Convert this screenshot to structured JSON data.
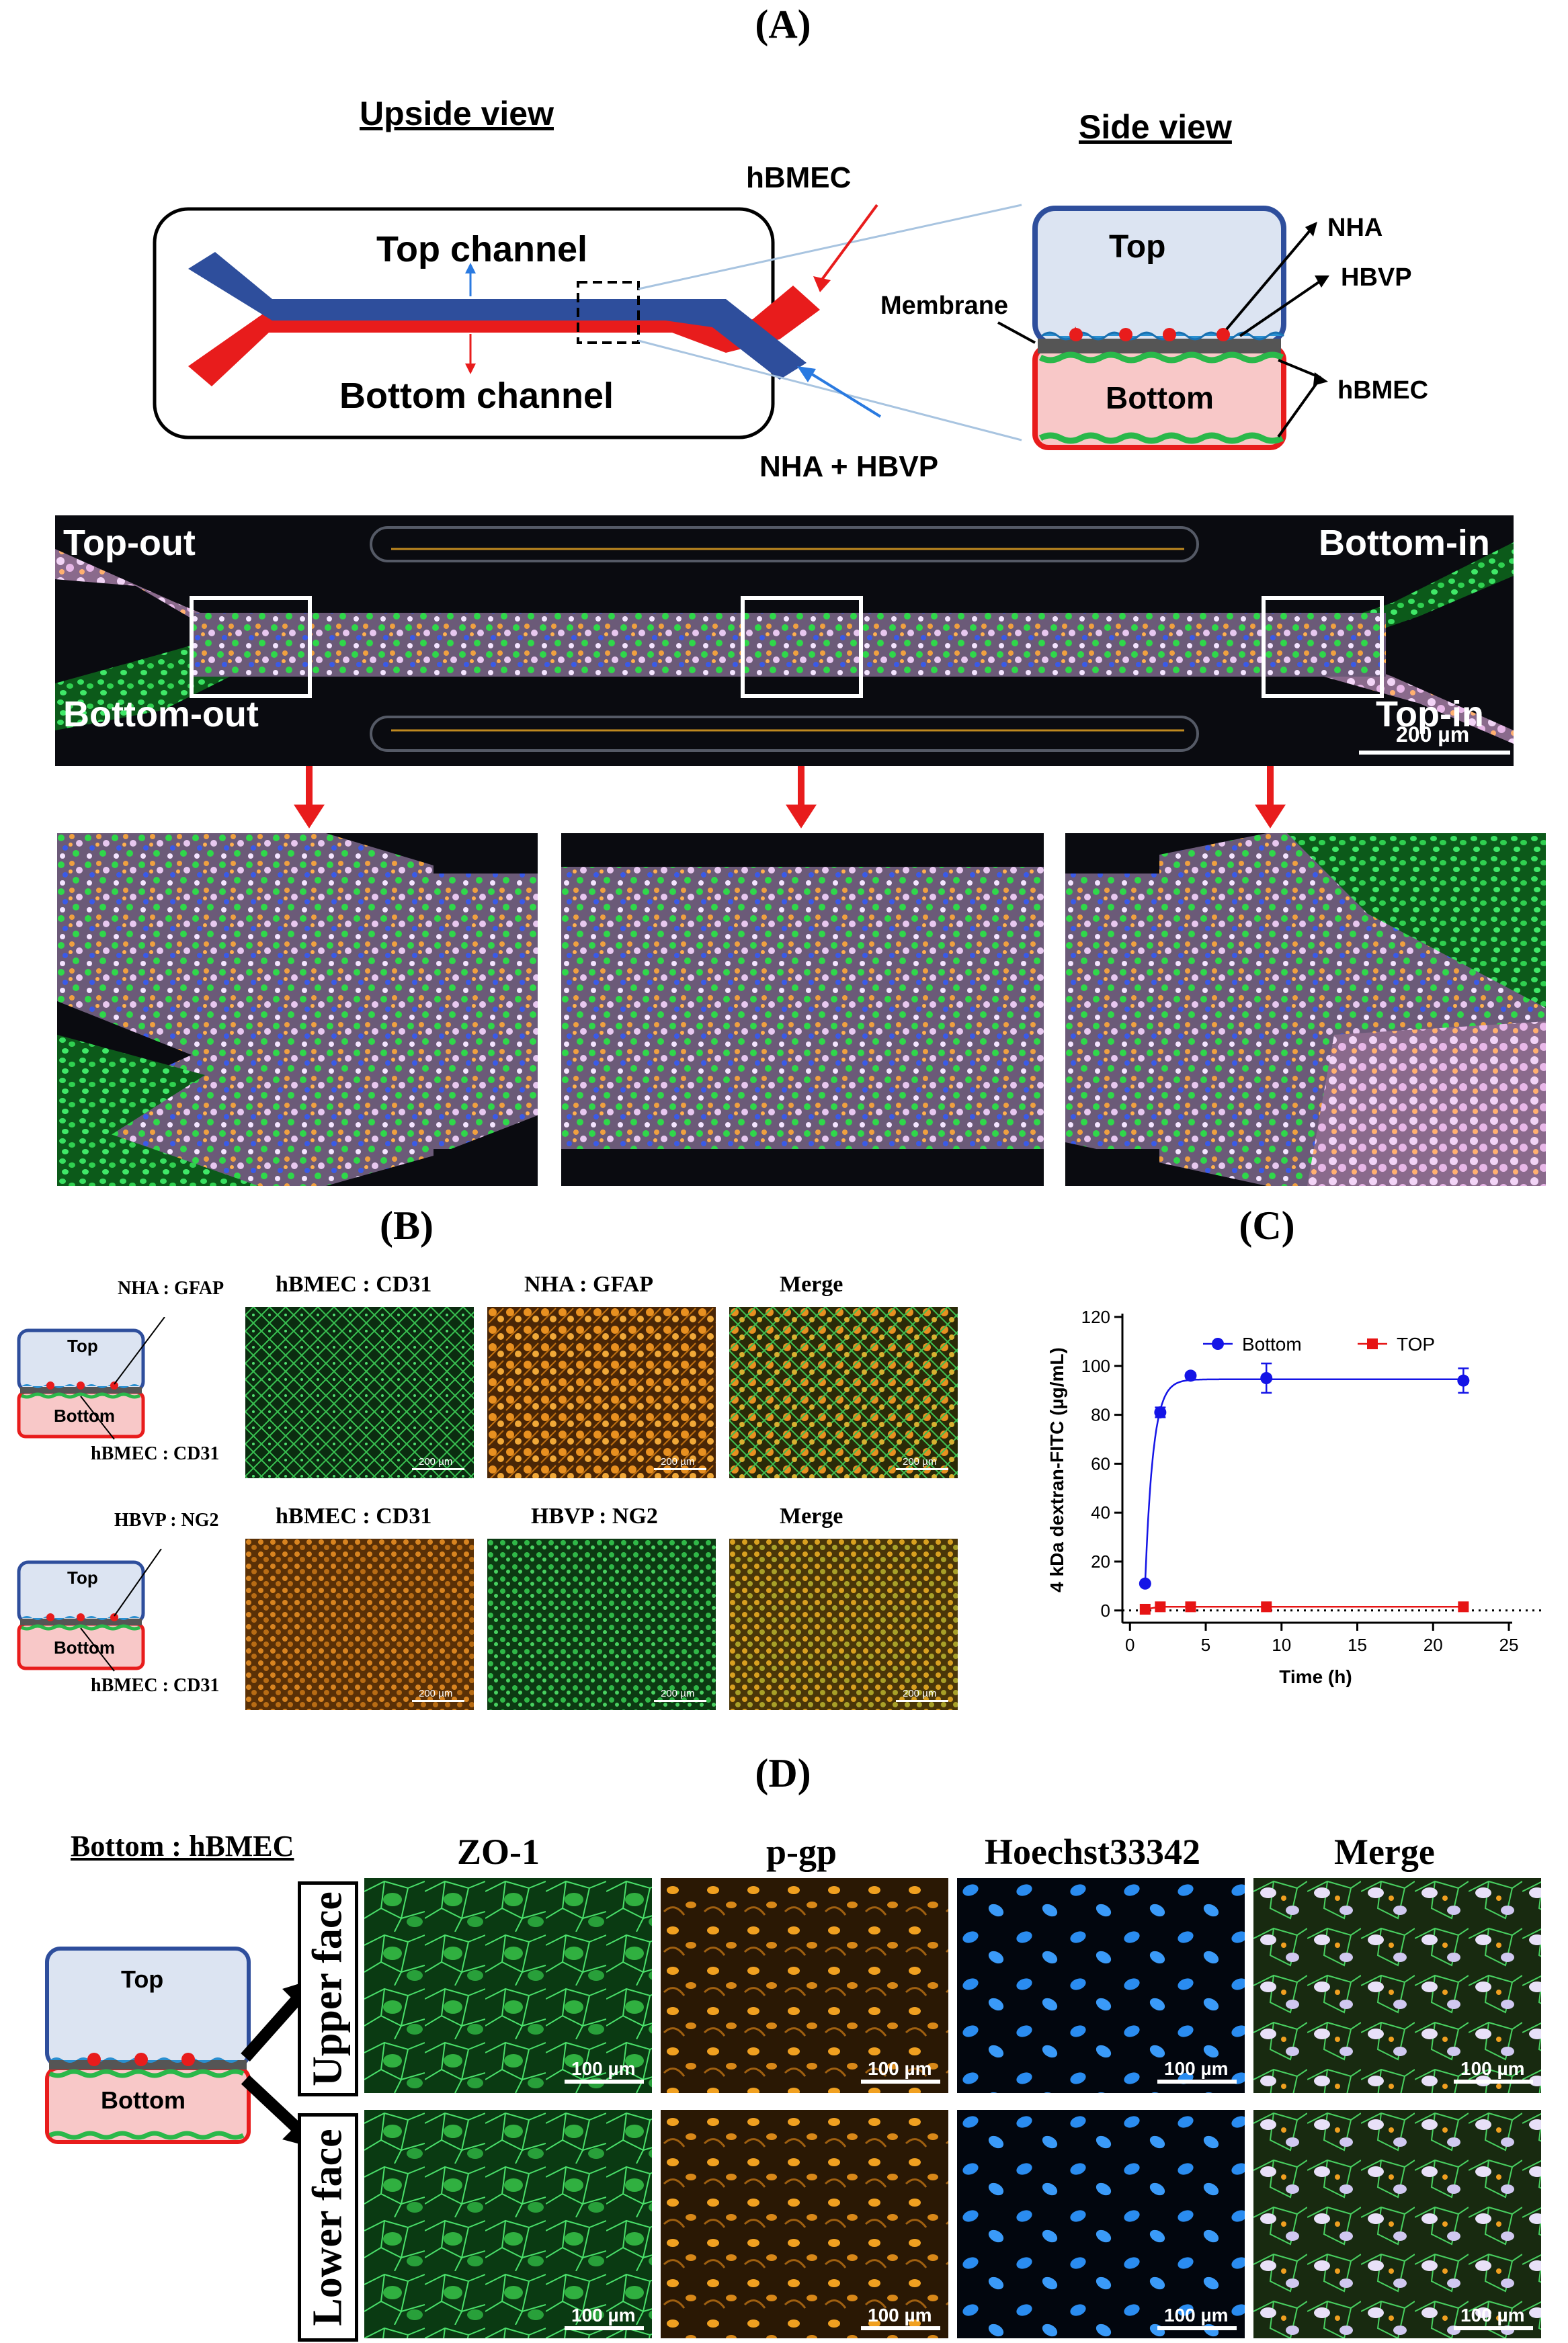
{
  "panels": {
    "A": "(A)",
    "B": "(B)",
    "C": "(C)",
    "D": "(D)"
  },
  "panel_a": {
    "upside_title": "Upside view",
    "side_title": "Side view",
    "top_channel": "Top channel",
    "bottom_channel": "Bottom channel",
    "hbmec": "hBMEC",
    "nha_hbvp": "NHA + HBVP",
    "side_top": "Top",
    "side_bottom": "Bottom",
    "nha": "NHA",
    "hbvp": "HBVP",
    "membrane": "Membrane",
    "side_hbmec": "hBMEC",
    "micro_labels": {
      "top_out": "Top-out",
      "bottom_in": "Bottom-in",
      "bottom_out": "Bottom-out",
      "top_in": "Top-in"
    },
    "scale": "200 µm"
  },
  "panel_b": {
    "row1": {
      "schematic_top_label": "NHA : GFAP",
      "schematic_bottom_label": "hBMEC : CD31",
      "col1": "hBMEC : CD31",
      "col2": "NHA : GFAP",
      "col3": "Merge"
    },
    "row2": {
      "schematic_top_label": "HBVP : NG2",
      "schematic_bottom_label": "hBMEC : CD31",
      "col1": "hBMEC : CD31",
      "col2": "HBVP : NG2",
      "col3": "Merge"
    },
    "schematic_top": "Top",
    "schematic_bottom": "Bottom",
    "scale": "200 µm"
  },
  "panel_d": {
    "title": "Bottom : hBMEC",
    "columns": [
      "ZO-1",
      "p-gp",
      "Hoechst33342",
      "Merge"
    ],
    "rows": [
      "Upper face",
      "Lower face"
    ],
    "schematic_top": "Top",
    "schematic_bottom": "Bottom",
    "scale": "100 µm"
  },
  "chart_data": {
    "type": "line",
    "ylabel": "4 kDa dextran-FITC (µg/mL)",
    "xlabel": "Time (h)",
    "xlim": [
      -0.5,
      25
    ],
    "ylim": [
      -5,
      120
    ],
    "xticks": [
      0,
      5,
      10,
      15,
      20,
      25
    ],
    "yticks": [
      0,
      20,
      40,
      60,
      80,
      100,
      120
    ],
    "legend_position": "top",
    "dotted_zero_line": true,
    "series": [
      {
        "name": "Bottom",
        "color": "#1414e6",
        "marker": "circle",
        "x": [
          1,
          2,
          4,
          9,
          22
        ],
        "y": [
          11,
          81,
          96,
          95,
          94
        ],
        "err": [
          0,
          2,
          1,
          6,
          5
        ],
        "fit": {
          "plateau": 94.5,
          "start_x": 1,
          "start_y": 11,
          "rate": 1.9
        }
      },
      {
        "name": "TOP",
        "color": "#e61414",
        "marker": "square",
        "x": [
          1,
          2,
          4,
          9,
          22
        ],
        "y": [
          0.5,
          1.5,
          1.5,
          1.5,
          1.5
        ],
        "err": [
          0,
          0,
          0,
          0,
          0
        ]
      }
    ]
  },
  "colors": {
    "top_blue": "#2e4e9c",
    "bottom_red": "#e81c1c",
    "top_fill": "#dce4f2",
    "bottom_fill": "#f8c8c8",
    "cell_green": "#2ab84a"
  }
}
